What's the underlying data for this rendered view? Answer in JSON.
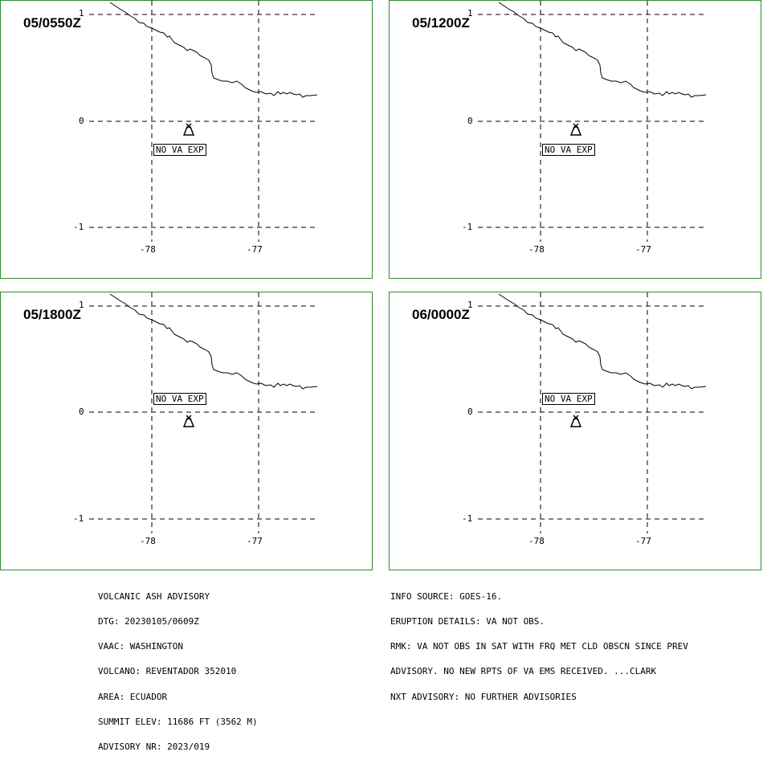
{
  "panels": [
    {
      "time": "05/0550Z",
      "va_label": "NO VA EXP",
      "label_below_symbol": true
    },
    {
      "time": "05/1200Z",
      "va_label": "NO VA EXP",
      "label_below_symbol": true
    },
    {
      "time": "05/1800Z",
      "va_label": "NO VA EXP",
      "label_below_symbol": false
    },
    {
      "time": "06/0000Z",
      "va_label": "NO VA EXP",
      "label_below_symbol": false
    }
  ],
  "axes": {
    "lat_labels": [
      "1",
      "0",
      "-1"
    ],
    "lon_labels": [
      "-78",
      "-77"
    ]
  },
  "volcano_symbol": "volcano-icon",
  "advisory_left": [
    "VOLCANIC ASH ADVISORY",
    "DTG: 20230105/0609Z",
    "VAAC: WASHINGTON",
    "VOLCANO: REVENTADOR 352010",
    "AREA: ECUADOR",
    "SUMMIT ELEV: 11686 FT (3562 M)",
    "ADVISORY NR: 2023/019"
  ],
  "advisory_right": [
    "INFO SOURCE: GOES-16.",
    "ERUPTION DETAILS: VA NOT OBS.",
    "RMK: VA NOT OBS IN SAT WITH FRQ MET CLD OBSCN SINCE PREV",
    "ADVISORY. NO NEW RPTS OF VA EMS RECEIVED. ...CLARK",
    "NXT ADVISORY: NO FURTHER ADVISORIES"
  ],
  "colors": {
    "panel_border": "#2e8b2e",
    "ink": "#000000",
    "background": "#ffffff"
  }
}
